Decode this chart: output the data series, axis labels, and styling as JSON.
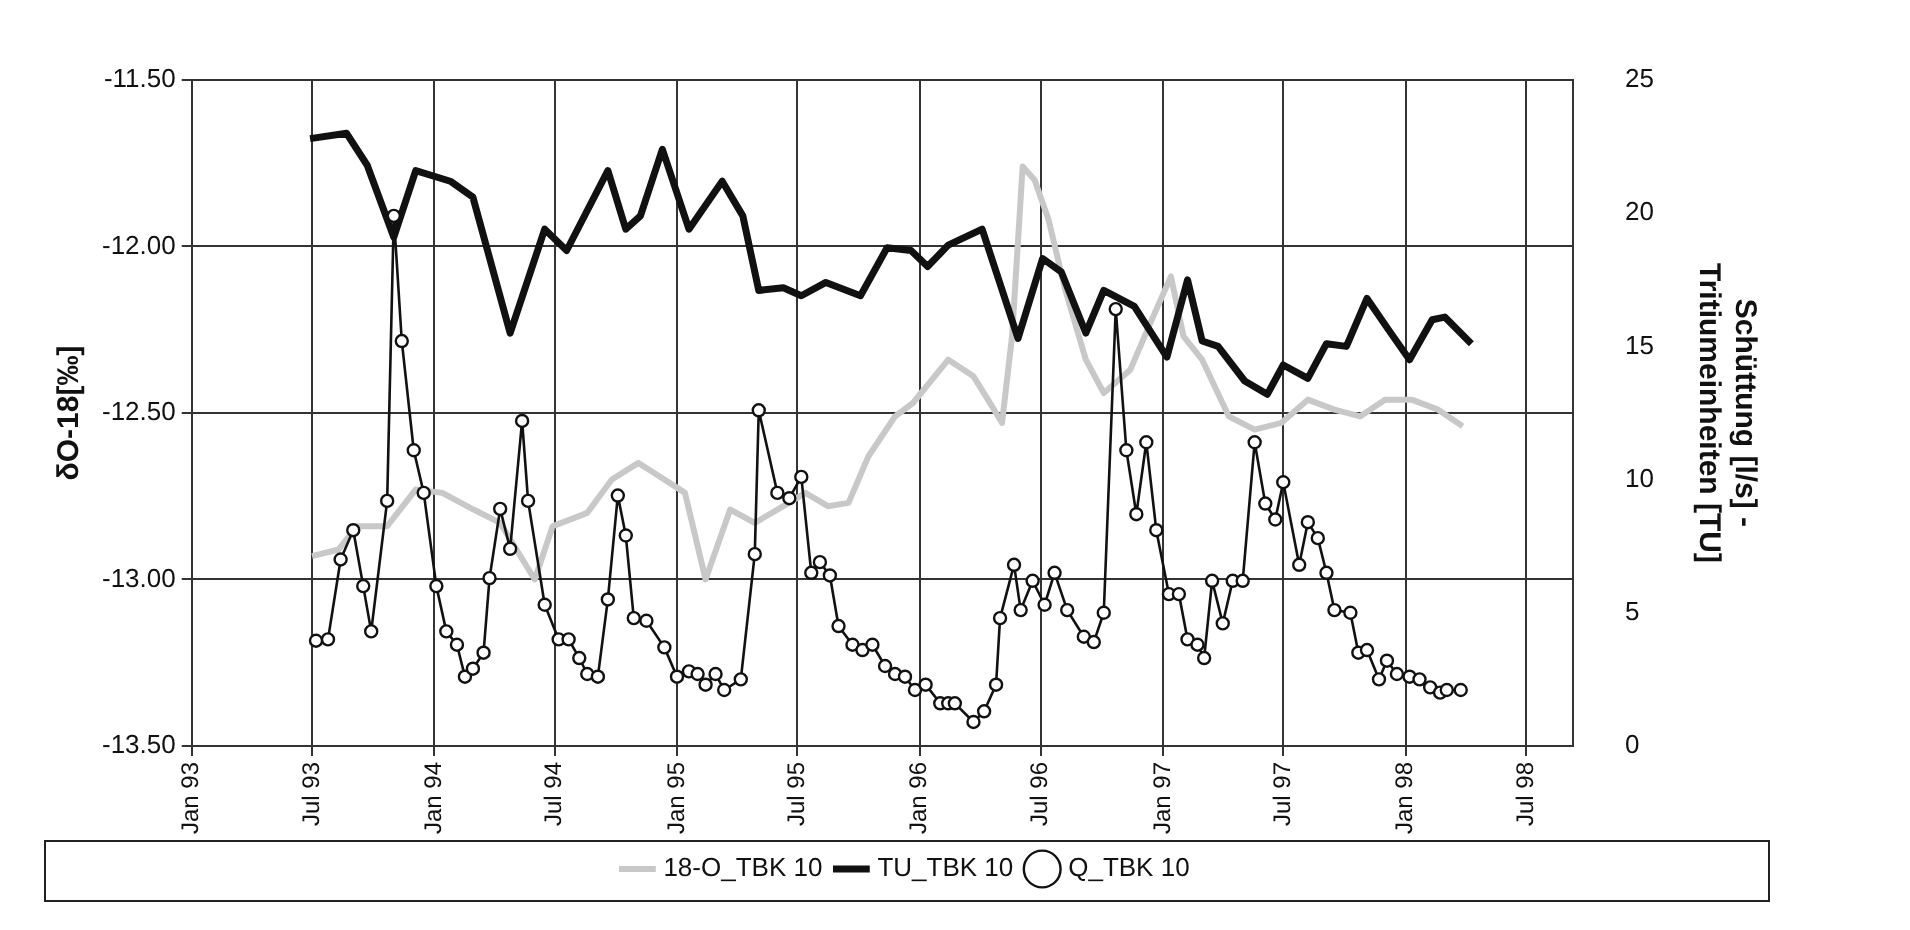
{
  "chart_data": {
    "type": "line",
    "ylabel": "δO-18[‰]",
    "y2label": "Schüttung [l/s] - Tritiumeinheiten [TU]",
    "xlim": [
      "1993-01-01",
      "1998-09-10"
    ],
    "xticks": [
      {
        "value": "1993-01",
        "label": "Jan 93"
      },
      {
        "value": "1993-07",
        "label": "Jul 93"
      },
      {
        "value": "1994-01",
        "label": "Jan 94"
      },
      {
        "value": "1994-07",
        "label": "Jul 94"
      },
      {
        "value": "1995-01",
        "label": "Jan 95"
      },
      {
        "value": "1995-07",
        "label": "Jul 95"
      },
      {
        "value": "1996-01",
        "label": "Jan 96"
      },
      {
        "value": "1996-07",
        "label": "Jul 96"
      },
      {
        "value": "1997-01",
        "label": "Jan 97"
      },
      {
        "value": "1997-07",
        "label": "Jul 97"
      },
      {
        "value": "1998-01",
        "label": "Jan 98"
      },
      {
        "value": "1998-07",
        "label": "Jul 98"
      }
    ],
    "ylim": [
      -13.5,
      -11.5
    ],
    "yticks": [
      {
        "value": -13.5,
        "label": "-13.50"
      },
      {
        "value": -13,
        "label": "-13.00"
      },
      {
        "value": -12.5,
        "label": "-12.50"
      },
      {
        "value": -12,
        "label": "-12.00"
      },
      {
        "value": -11.5,
        "label": "-11.50"
      }
    ],
    "y2lim": [
      0,
      25
    ],
    "y2ticks": [
      0,
      5,
      10,
      15,
      20,
      25
    ],
    "grid": true,
    "legend": "bottom",
    "series": [
      {
        "name": "18-O_TBK 10",
        "color": "#c8c8c8",
        "marker": "none",
        "x": [
          "1993-07-01",
          "1993-08-10",
          "1993-09-07",
          "1993-10-22",
          "1993-12-04",
          "1994-01-13",
          "1994-03-01",
          "1994-04-10",
          "1994-06-01",
          "1994-06-28",
          "1994-08-19",
          "1994-09-25",
          "1994-11-04",
          "1994-12-13",
          "1995-01-13",
          "1995-02-13",
          "1995-03-22",
          "1995-04-28",
          "1995-06-10",
          "1995-07-13",
          "1995-08-16",
          "1995-09-16",
          "1995-10-16",
          "1995-11-25",
          "1995-12-22",
          "1996-02-13",
          "1996-03-22",
          "1996-04-19",
          "1996-05-04",
          "1996-05-19",
          "1996-06-04",
          "1996-06-22",
          "1996-07-13",
          "1996-08-07",
          "1996-09-07",
          "1996-10-04",
          "1996-11-13",
          "1996-12-13",
          "1997-01-13",
          "1997-02-01",
          "1997-03-01",
          "1997-04-10",
          "1997-05-19",
          "1997-06-28",
          "1997-08-07",
          "1997-09-16",
          "1997-10-25",
          "1997-12-01",
          "1998-01-10",
          "1998-02-19",
          "1998-03-28"
        ],
        "values": [
          -12.93,
          -12.91,
          -12.84,
          -12.84,
          -12.73,
          -12.74,
          -12.79,
          -12.83,
          -13.0,
          -12.84,
          -12.8,
          -12.7,
          -12.65,
          -12.7,
          -12.74,
          -13.0,
          -12.79,
          -12.83,
          -12.78,
          -12.74,
          -12.78,
          -12.77,
          -12.63,
          -12.51,
          -12.47,
          -12.34,
          -12.39,
          -12.48,
          -12.53,
          -12.27,
          -11.76,
          -11.8,
          -11.92,
          -12.13,
          -12.34,
          -12.44,
          -12.37,
          -12.23,
          -12.09,
          -12.27,
          -12.34,
          -12.51,
          -12.55,
          -12.53,
          -12.46,
          -12.49,
          -12.51,
          -12.46,
          -12.46,
          -12.49,
          -12.54
        ]
      },
      {
        "name": "TU_TBK 10",
        "color": "#111111",
        "marker": "none",
        "axis": "y2",
        "x": [
          "1993-06-28",
          "1993-08-22",
          "1993-09-22",
          "1993-11-01",
          "1993-12-04",
          "1994-01-25",
          "1994-02-28",
          "1994-04-25",
          "1994-06-16",
          "1994-07-19",
          "1994-09-19",
          "1994-10-16",
          "1994-11-07",
          "1994-12-10",
          "1995-01-19",
          "1995-03-10",
          "1995-04-10",
          "1995-05-04",
          "1995-06-10",
          "1995-07-07",
          "1995-08-13",
          "1995-10-04",
          "1995-11-13",
          "1995-12-19",
          "1996-01-13",
          "1996-02-13",
          "1996-04-04",
          "1996-05-28",
          "1996-07-04",
          "1996-08-01",
          "1996-09-07",
          "1996-10-04",
          "1996-11-19",
          "1997-01-07",
          "1997-02-07",
          "1997-03-01",
          "1997-03-25",
          "1997-05-04",
          "1997-06-07",
          "1997-07-01",
          "1997-08-07",
          "1997-09-04",
          "1997-10-04",
          "1997-11-04",
          "1997-12-07",
          "1998-01-07",
          "1998-02-10",
          "1998-03-01",
          "1998-04-10"
        ],
        "values": [
          22.8,
          23.0,
          21.8,
          19.1,
          21.6,
          21.2,
          20.6,
          15.5,
          19.4,
          18.6,
          21.6,
          19.4,
          19.9,
          22.4,
          19.4,
          21.2,
          19.9,
          17.1,
          17.2,
          16.9,
          17.4,
          16.9,
          18.7,
          18.6,
          18.0,
          18.8,
          19.4,
          15.3,
          18.3,
          17.8,
          15.5,
          17.1,
          16.5,
          14.6,
          17.5,
          15.2,
          15.0,
          13.7,
          13.2,
          14.3,
          13.8,
          15.1,
          15.0,
          16.8,
          15.6,
          14.5,
          16.0,
          16.1,
          15.1
        ]
      },
      {
        "name": "Q_TBK 10",
        "color": "#111111",
        "marker": "circle",
        "axis": "y2",
        "x": [
          "1993-07-07",
          "1993-07-25",
          "1993-08-13",
          "1993-09-01",
          "1993-09-16",
          "1993-09-28",
          "1993-10-22",
          "1993-11-01",
          "1993-11-13",
          "1993-12-01",
          "1993-12-16",
          "1994-01-04",
          "1994-01-19",
          "1994-02-04",
          "1994-02-16",
          "1994-02-28",
          "1994-03-16",
          "1994-03-25",
          "1994-04-10",
          "1994-04-25",
          "1994-05-13",
          "1994-05-22",
          "1994-06-16",
          "1994-07-07",
          "1994-07-22",
          "1994-08-07",
          "1994-08-19",
          "1994-09-04",
          "1994-09-19",
          "1994-10-04",
          "1994-10-16",
          "1994-10-28",
          "1994-11-16",
          "1994-12-13",
          "1995-01-01",
          "1995-01-19",
          "1995-02-01",
          "1995-02-13",
          "1995-02-28",
          "1995-03-13",
          "1995-04-07",
          "1995-04-28",
          "1995-05-04",
          "1995-06-01",
          "1995-06-19",
          "1995-07-07",
          "1995-07-22",
          "1995-08-04",
          "1995-08-19",
          "1995-09-01",
          "1995-09-22",
          "1995-10-07",
          "1995-10-22",
          "1995-11-10",
          "1995-11-25",
          "1995-12-10",
          "1995-12-25",
          "1996-01-10",
          "1996-02-01",
          "1996-02-13",
          "1996-02-23",
          "1996-03-22",
          "1996-04-07",
          "1996-04-25",
          "1996-05-01",
          "1996-05-22",
          "1996-06-01",
          "1996-06-19",
          "1996-07-07",
          "1996-07-22",
          "1996-08-10",
          "1996-09-04",
          "1996-09-19",
          "1996-10-04",
          "1996-10-22",
          "1996-11-07",
          "1996-11-22",
          "1996-12-07",
          "1996-12-22",
          "1997-01-10",
          "1997-01-25",
          "1997-02-07",
          "1997-02-22",
          "1997-03-04",
          "1997-03-16",
          "1997-04-01",
          "1997-04-16",
          "1997-05-01",
          "1997-05-19",
          "1997-06-04",
          "1997-06-19",
          "1997-07-01",
          "1997-07-25",
          "1997-08-07",
          "1997-08-22",
          "1997-09-04",
          "1997-09-16",
          "1997-10-10",
          "1997-10-22",
          "1997-11-04",
          "1997-11-22",
          "1997-12-04",
          "1997-12-19",
          "1998-01-07",
          "1998-01-22",
          "1998-02-07",
          "1998-02-22",
          "1998-03-04",
          "1998-03-25"
        ],
        "values": [
          3.95,
          4.0,
          7.0,
          8.1,
          6.0,
          4.3,
          9.2,
          19.9,
          15.2,
          11.1,
          9.5,
          6.0,
          4.3,
          3.8,
          2.6,
          2.9,
          3.5,
          6.3,
          8.9,
          7.4,
          12.2,
          9.2,
          5.3,
          4.0,
          4.0,
          3.3,
          2.7,
          2.6,
          5.5,
          9.4,
          7.9,
          4.8,
          4.7,
          3.7,
          2.6,
          2.8,
          2.7,
          2.3,
          2.7,
          2.1,
          2.5,
          7.2,
          12.6,
          9.5,
          9.3,
          10.1,
          6.5,
          6.9,
          6.4,
          4.5,
          3.8,
          3.6,
          3.8,
          3.0,
          2.7,
          2.6,
          2.1,
          2.3,
          1.6,
          1.6,
          1.6,
          0.9,
          1.3,
          2.3,
          4.8,
          6.8,
          5.1,
          6.2,
          5.3,
          6.5,
          5.1,
          4.1,
          3.9,
          5.0,
          16.4,
          11.1,
          8.7,
          11.4,
          8.1,
          5.7,
          5.7,
          4.0,
          3.8,
          3.3,
          6.2,
          4.6,
          6.2,
          6.2,
          11.4,
          9.1,
          8.5,
          9.9,
          6.8,
          8.4,
          7.8,
          6.5,
          5.1,
          5.0,
          3.5,
          3.6,
          2.5,
          3.2,
          2.7,
          2.6,
          2.5,
          2.2,
          2.0,
          2.1,
          2.1
        ]
      }
    ]
  }
}
